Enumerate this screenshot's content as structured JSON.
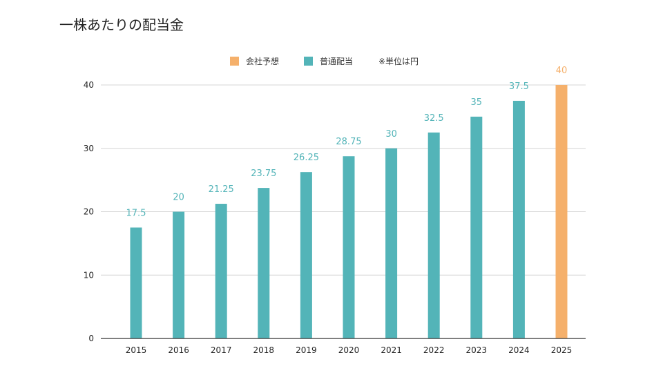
{
  "page": {
    "title": "一株あたりの配当金"
  },
  "legend": {
    "items": [
      {
        "label": "会社予想",
        "color": "#F5B06B"
      },
      {
        "label": "普通配当",
        "color": "#53B4B8"
      }
    ],
    "note": "※単位は円"
  },
  "chart_data": {
    "type": "bar",
    "categories": [
      "2015",
      "2016",
      "2017",
      "2018",
      "2019",
      "2020",
      "2021",
      "2022",
      "2023",
      "2024",
      "2025"
    ],
    "series": [
      {
        "name": "普通配当",
        "color": "#53B4B8",
        "values": [
          17.5,
          20,
          21.25,
          23.75,
          26.25,
          28.75,
          30,
          32.5,
          35,
          37.5,
          null
        ]
      },
      {
        "name": "会社予想",
        "color": "#F5B06B",
        "values": [
          null,
          null,
          null,
          null,
          null,
          null,
          null,
          null,
          null,
          null,
          40
        ]
      }
    ],
    "data_labels": [
      "17.5",
      "20",
      "21.25",
      "23.75",
      "26.25",
      "28.75",
      "30",
      "32.5",
      "35",
      "37.5",
      "40"
    ],
    "ylim": [
      0,
      40
    ],
    "yticks": [
      0,
      10,
      20,
      30,
      40
    ],
    "ytick_labels": [
      "0",
      "10",
      "20",
      "30",
      "40"
    ],
    "grid": true,
    "legend_position": "top"
  }
}
